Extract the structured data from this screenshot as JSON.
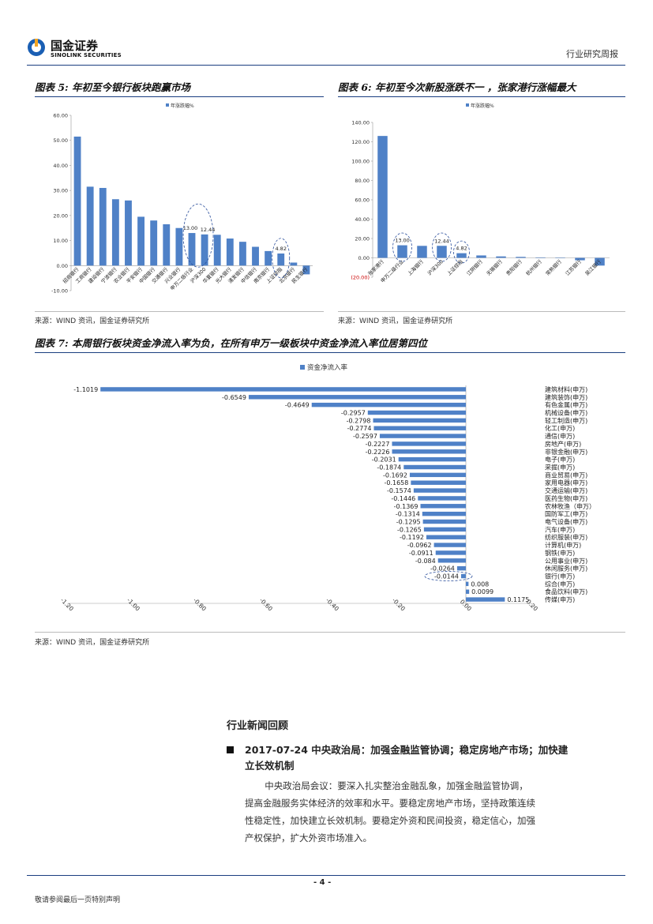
{
  "header": {
    "logo_cn": "国金证券",
    "logo_en": "SINOLINK SECURITIES",
    "report_type": "行业研究周报"
  },
  "figures": {
    "fig5": {
      "title": "图表 5: 年初至今银行板块跑赢市场",
      "source": "来源：WIND 资讯，国金证券研究所"
    },
    "fig6": {
      "title": "图表 6: 年初至今次新股涨跌不一 ，张家港行涨幅最大",
      "source": "来源：WIND 资讯，国金证券研究所"
    },
    "fig7": {
      "title": "图表 7: 本周银行板块资金净流入率为负，在所有申万一级板块中资金净流入率位居第四位",
      "source": "来源：WIND 资讯，国金证券研究所"
    }
  },
  "chart_data": [
    {
      "type": "bar",
      "legend": "年涨跌幅%",
      "legend_position": "top",
      "ylim": [
        -10,
        60
      ],
      "yticks": [
        "60.00",
        "50.00",
        "40.00",
        "30.00",
        "20.00",
        "10.00",
        "0.00",
        "-10.00"
      ],
      "categories": [
        "招商银行",
        "工商银行",
        "建设银行",
        "宁波银行",
        "农业银行",
        "平安银行",
        "中国银行",
        "交通银行",
        "兴业银行",
        "申万二级行业",
        "沪深300",
        "华夏银行",
        "光大银行",
        "浦发银行",
        "中信银行",
        "南京银行",
        "上证综指",
        "北京银行",
        "民生银行"
      ],
      "values": [
        51.5,
        31.5,
        31,
        26.5,
        26,
        19.5,
        18,
        16.5,
        15,
        13.0,
        12.44,
        12.3,
        10.8,
        9.5,
        7.5,
        5.8,
        4.82,
        1.2,
        -3.5
      ],
      "annotations": [
        "13.00",
        "12.44",
        "4.82"
      ],
      "grid": false
    },
    {
      "type": "bar",
      "legend": "年涨跌幅%",
      "legend_position": "top",
      "ylim": [
        -20,
        140
      ],
      "yticks": [
        "140.00",
        "120.00",
        "100.00",
        "80.00",
        "60.00",
        "40.00",
        "20.00",
        "0.00",
        "(20.00)"
      ],
      "categories": [
        "张家港行",
        "申万二级行业",
        "上海银行",
        "沪深300",
        "上证综指",
        "江阴银行",
        "无锡银行",
        "贵阳银行",
        "杭州银行",
        "常熟银行",
        "江苏银行",
        "吴江银行"
      ],
      "values": [
        126,
        13.0,
        12.4,
        12.44,
        4.82,
        2.5,
        1.5,
        1.0,
        0.5,
        0.2,
        -2.5,
        -8
      ],
      "annotations": [
        "13.00",
        "12.44",
        "4.82"
      ],
      "grid": false
    },
    {
      "type": "bar",
      "orientation": "horizontal",
      "legend": "资金净流入率",
      "legend_position": "top",
      "xlim": [
        -1.2,
        0.2
      ],
      "xticks": [
        "-1.20",
        "-1.00",
        "-0.80",
        "-0.60",
        "-0.40",
        "-0.20",
        "0.00",
        "0.20"
      ],
      "categories": [
        "建筑材料(申万)",
        "建筑装饰(申万)",
        "有色金属(申万)",
        "机械设备(申万)",
        "轻工制造(申万)",
        "化工(申万)",
        "通信(申万)",
        "房地产(申万)",
        "非银金融(申万)",
        "电子(申万)",
        "采掘(申万)",
        "商业贸易(申万)",
        "家用电器(申万)",
        "交通运输(申万)",
        "医药生物(申万)",
        "农林牧渔（申万）",
        "国防军工(申万)",
        "电气设备(申万)",
        "汽车(申万)",
        "纺织服装(申万)",
        "计算机(申万)",
        "钢铁(申万)",
        "公用事业(申万)",
        "休闲服务(申万)",
        "银行(申万)",
        "综合(申万)",
        "食品饮料(申万)",
        "传媒(申万)"
      ],
      "values": [
        -1.1019,
        -0.6549,
        -0.4649,
        -0.2957,
        -0.2798,
        -0.2774,
        -0.2597,
        -0.2227,
        -0.2226,
        -0.2031,
        -0.1874,
        -0.1692,
        -0.1658,
        -0.1574,
        -0.1446,
        -0.1369,
        -0.1314,
        -0.1295,
        -0.1265,
        -0.1192,
        -0.0962,
        -0.0911,
        -0.084,
        -0.0264,
        -0.0144,
        0.008,
        0.0099,
        0.1175
      ],
      "value_labels": [
        "-1.1019",
        "-0.6549",
        "-0.4649",
        "-0.2957",
        "-0.2798",
        "-0.2774",
        "-0.2597",
        "-0.2227",
        "-0.2226",
        "-0.2031",
        "-0.1874",
        "-0.1692",
        "-0.1658",
        "-0.1574",
        "-0.1446",
        "-0.1369",
        "-0.1314",
        "-0.1295",
        "-0.1265",
        "-0.1192",
        "-0.0962",
        "-0.0911",
        "-0.084",
        "-0.0264",
        "-0.0144",
        "0.008",
        "0.0099",
        "0.1175"
      ],
      "grid": false
    }
  ],
  "news": {
    "heading": "行业新闻回顾",
    "item_title_1": "2017-07-24 中央政治局：加强金融监管协调；稳定房地产市场；加快建",
    "item_title_2": "立长效机制",
    "body_1": "中央政治局会议：要深入扎实整治金融乱象，加强金融监管协调，",
    "body_2": "提高金融服务实体经济的效率和水平。要稳定房地产市场，坚持政策连续",
    "body_3": "性稳定性，加快建立长效机制。要稳定外资和民间投资，稳定信心，加强",
    "body_4": "产权保护，扩大外资市场准入。"
  },
  "footer": {
    "page": "- 4 -",
    "disclaimer": "敬请参阅最后一页特别声明"
  }
}
